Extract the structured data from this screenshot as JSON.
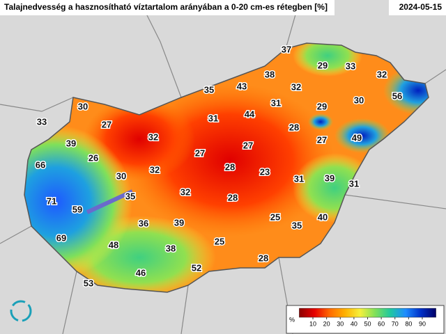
{
  "header": {
    "title": "Talajnedvesség a hasznosítható víztartalom arányában a 0-20 cm-es rétegben [%]",
    "date": "2024-05-15"
  },
  "stations": [
    37,
    29,
    33,
    32,
    38,
    43,
    35,
    32,
    56,
    30,
    31,
    29,
    30,
    44,
    31,
    27,
    33,
    28,
    32,
    49,
    27,
    39,
    27,
    27,
    26,
    66,
    28,
    32,
    23,
    30,
    31,
    39,
    31,
    32,
    35,
    28,
    71,
    59,
    25,
    40,
    36,
    39,
    35,
    69,
    25,
    48,
    38,
    28,
    52,
    46,
    53
  ],
  "colorbar": {
    "unit": "%",
    "lim": [
      0,
      100
    ],
    "ticks": [
      10,
      20,
      30,
      40,
      50,
      60,
      70,
      80,
      90
    ],
    "colors": [
      "#8b0000",
      "#e60000",
      "#ff6a00",
      "#ffb000",
      "#f5f03c",
      "#7fe05a",
      "#20c8a0",
      "#1e8cff",
      "#0030c8",
      "#000066"
    ]
  }
}
